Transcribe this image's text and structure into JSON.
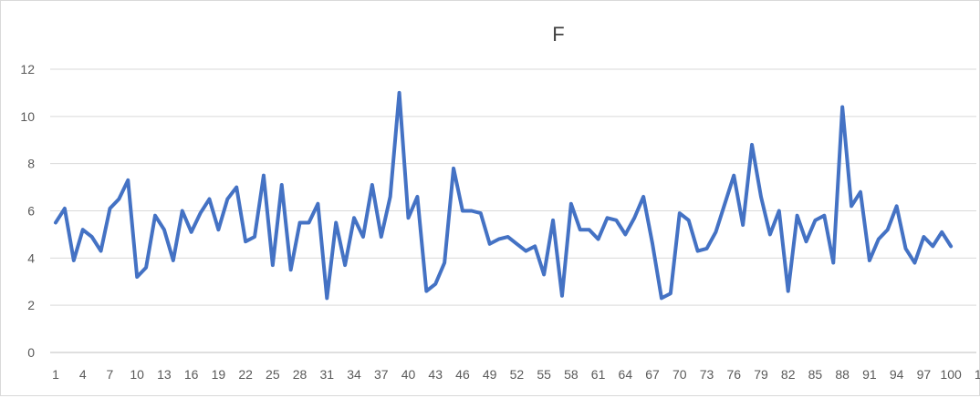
{
  "chart_data": {
    "type": "line",
    "title": "F",
    "xlabel": "",
    "ylabel": "",
    "ylim": [
      0,
      12
    ],
    "y_ticks": [
      0,
      2,
      4,
      6,
      8,
      10,
      12
    ],
    "x_tick_labels": [
      "1",
      "4",
      "7",
      "10",
      "13",
      "16",
      "19",
      "22",
      "25",
      "28",
      "31",
      "34",
      "37",
      "40",
      "43",
      "46",
      "49",
      "52",
      "55",
      "58",
      "61",
      "64",
      "67",
      "70",
      "73",
      "76",
      "79",
      "82",
      "85",
      "88",
      "91",
      "94",
      "97",
      "100",
      "1"
    ],
    "grid": "horizontal",
    "legend": "none",
    "series_color": "#4472C4",
    "x": [
      1,
      2,
      3,
      4,
      5,
      6,
      7,
      8,
      9,
      10,
      11,
      12,
      13,
      14,
      15,
      16,
      17,
      18,
      19,
      20,
      21,
      22,
      23,
      24,
      25,
      26,
      27,
      28,
      29,
      30,
      31,
      32,
      33,
      34,
      35,
      36,
      37,
      38,
      39,
      40,
      41,
      42,
      43,
      44,
      45,
      46,
      47,
      48,
      49,
      50,
      51,
      52,
      53,
      54,
      55,
      56,
      57,
      58,
      59,
      60,
      61,
      62,
      63,
      64,
      65,
      66,
      67,
      68,
      69,
      70,
      71,
      72,
      73,
      74,
      75,
      76,
      77,
      78,
      79,
      80,
      81,
      82,
      83,
      84,
      85,
      86,
      87,
      88,
      89,
      90,
      91,
      92,
      93,
      94,
      95,
      96,
      97,
      98,
      99,
      100
    ],
    "series": [
      {
        "values": [
          5.5,
          6.1,
          3.9,
          5.2,
          4.9,
          4.3,
          6.1,
          6.5,
          7.3,
          3.2,
          3.6,
          5.8,
          5.2,
          3.9,
          6.0,
          5.1,
          5.9,
          6.5,
          5.2,
          6.5,
          7.0,
          4.7,
          4.9,
          7.5,
          3.7,
          7.1,
          3.5,
          5.5,
          5.5,
          6.3,
          2.3,
          5.5,
          3.7,
          5.7,
          4.9,
          7.1,
          4.9,
          6.6,
          11.0,
          5.7,
          6.6,
          2.6,
          2.9,
          3.8,
          7.8,
          6.0,
          6.0,
          5.9,
          4.6,
          4.8,
          4.9,
          4.6,
          4.3,
          4.5,
          3.3,
          5.6,
          2.4,
          6.3,
          5.2,
          5.2,
          4.8,
          5.7,
          5.6,
          5.0,
          5.7,
          6.6,
          4.6,
          2.3,
          2.5,
          5.9,
          5.6,
          4.3,
          4.4,
          5.1,
          6.3,
          7.5,
          5.4,
          8.8,
          6.6,
          5.0,
          6.0,
          2.6,
          5.8,
          4.7,
          5.6,
          5.8,
          3.8,
          10.4,
          6.2,
          6.8,
          3.9,
          4.8,
          5.2,
          6.2,
          4.4,
          3.8,
          4.9,
          4.5,
          5.1,
          4.5
        ]
      }
    ]
  }
}
